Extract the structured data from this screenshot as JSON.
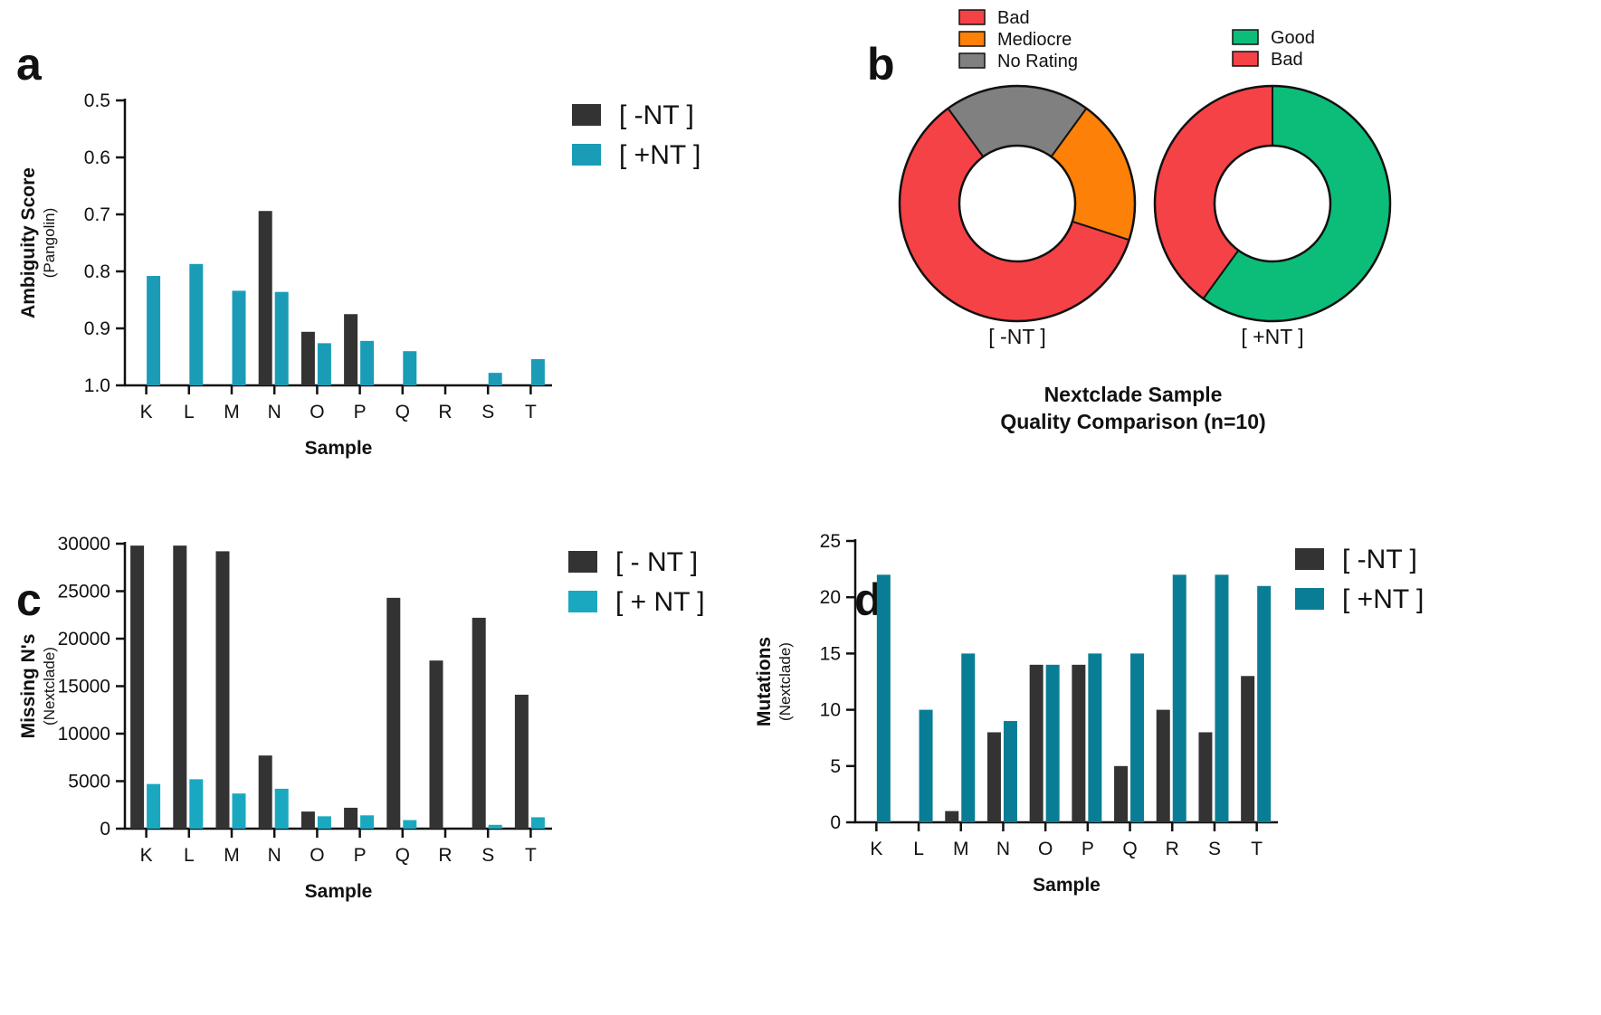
{
  "chart_data": [
    {
      "panel": "a",
      "type": "bar",
      "title": "",
      "xlabel": "Sample",
      "ylabel": "Ambiguity Score",
      "ylabel_sub": "(Pangolin)",
      "y_inverted": true,
      "ylim": [
        0.5,
        1.0
      ],
      "yticks": [
        "0.5",
        "0.6",
        "0.7",
        "0.8",
        "0.9",
        "1.0"
      ],
      "categories": [
        "K",
        "L",
        "M",
        "N",
        "O",
        "P",
        "Q",
        "R",
        "S",
        "T"
      ],
      "series": [
        {
          "name": "[ -NT ]",
          "color": "#333333",
          "values": [
            null,
            null,
            null,
            0.694,
            0.906,
            0.875,
            null,
            null,
            null,
            null
          ]
        },
        {
          "name": "[ +NT ]",
          "color": "#1a9cb7",
          "values": [
            0.808,
            0.787,
            0.834,
            0.836,
            0.926,
            0.922,
            0.94,
            null,
            0.978,
            0.954
          ]
        }
      ]
    },
    {
      "panel": "b",
      "type": "pie",
      "title": "Nextclade Sample",
      "title_line2": "Quality Comparison (n=10)",
      "donuts": [
        {
          "label": "[ -NT ]",
          "slices": [
            {
              "name": "Bad",
              "value": 6,
              "color": "#f54246"
            },
            {
              "name": "Mediocre",
              "value": 2,
              "color": "#fd8008"
            },
            {
              "name": "No Rating",
              "value": 2,
              "color": "#808080"
            }
          ]
        },
        {
          "label": "[ +NT ]",
          "slices": [
            {
              "name": "Good",
              "value": 6,
              "color": "#0cbd79"
            },
            {
              "name": "Bad",
              "value": 4,
              "color": "#f54246"
            }
          ]
        }
      ]
    },
    {
      "panel": "c",
      "type": "bar",
      "title": "",
      "xlabel": "Sample",
      "ylabel": "Missing N's",
      "ylabel_sub": "(Nextclade)",
      "ylim": [
        0,
        30000
      ],
      "yticks": [
        "0",
        "5000",
        "10000",
        "15000",
        "20000",
        "25000",
        "30000"
      ],
      "categories": [
        "K",
        "L",
        "M",
        "N",
        "O",
        "P",
        "Q",
        "R",
        "S",
        "T"
      ],
      "series": [
        {
          "name": "[ - NT ]",
          "color": "#333333",
          "values": [
            29800,
            29800,
            29200,
            7700,
            1800,
            2200,
            24300,
            17700,
            22200,
            14100
          ]
        },
        {
          "name": "[ + NT ]",
          "color": "#1aa8c1",
          "values": [
            4700,
            5200,
            3700,
            4200,
            1300,
            1400,
            900,
            0,
            400,
            1200
          ]
        }
      ]
    },
    {
      "panel": "d",
      "type": "bar",
      "title": "",
      "xlabel": "Sample",
      "ylabel": "Mutations",
      "ylabel_sub": "(Nextclade)",
      "ylim": [
        0,
        25
      ],
      "yticks": [
        "0",
        "5",
        "10",
        "15",
        "20",
        "25"
      ],
      "categories": [
        "K",
        "L",
        "M",
        "N",
        "O",
        "P",
        "Q",
        "R",
        "S",
        "T"
      ],
      "series": [
        {
          "name": "[ -NT ]",
          "color": "#333333",
          "values": [
            0,
            0,
            1,
            8,
            14,
            14,
            5,
            10,
            8,
            13
          ]
        },
        {
          "name": "[ +NT ]",
          "color": "#0a7d96",
          "values": [
            22,
            10,
            15,
            9,
            14,
            15,
            15,
            22,
            22,
            21
          ]
        }
      ]
    }
  ],
  "panel_letters": [
    "a",
    "b",
    "c",
    "d"
  ]
}
